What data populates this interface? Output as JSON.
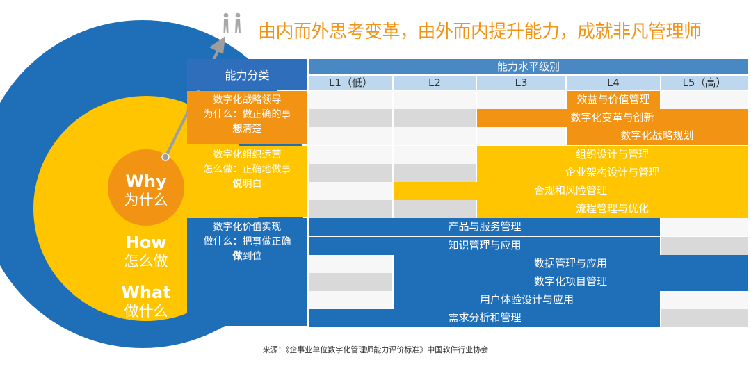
{
  "headline": "由内而外思考变革，由外而内提升能力，成就非凡管理师",
  "circles": {
    "why": {
      "en": "Why",
      "zh": "为什么"
    },
    "how": {
      "en": "How",
      "zh": "怎么做"
    },
    "what": {
      "en": "What",
      "zh": "做什么"
    }
  },
  "table": {
    "category_header": "能力分类",
    "level_header": "能力水平级别",
    "levels": [
      "L1（低）",
      "L2",
      "L3",
      "L4",
      "L5（高）"
    ],
    "categories": [
      {
        "line1": "数字化战略领导",
        "line2": "为什么：做正确的事",
        "bold": "想",
        "rest": "清楚",
        "color": "#F39313",
        "rows": [
          {
            "label": "效益与价值管理",
            "start": 4,
            "end": 4
          },
          {
            "label": "数字化变革与创新",
            "start": 3,
            "end": 5
          },
          {
            "label": "数字化战略规划",
            "start": 4,
            "end": 5
          }
        ]
      },
      {
        "line1": "数字化组织运营",
        "line2": "怎么做：正确地做事",
        "bold": "说",
        "rest": "明白",
        "color": "#FFC500",
        "rows": [
          {
            "label": "组织设计与管理",
            "start": 3,
            "end": 5
          },
          {
            "label": "企业架构设计与管理",
            "start": 3,
            "end": 5
          },
          {
            "label": "合规和风险管理",
            "start": 2,
            "end": 5
          },
          {
            "label": "流程管理与优化",
            "start": 3,
            "end": 5
          }
        ]
      },
      {
        "line1": "数字化价值实现",
        "line2": "做什么：把事做正确",
        "bold": "做",
        "rest": "到位",
        "color": "#1F6EB8",
        "rows": [
          {
            "label": "产品与服务管理",
            "start": 1,
            "end": 4
          },
          {
            "label": "知识管理与应用",
            "start": 1,
            "end": 4
          },
          {
            "label": "数据管理与应用",
            "start": 2,
            "end": 5
          },
          {
            "label": "数字化项目管理",
            "start": 2,
            "end": 5
          },
          {
            "label": "用户体验设计与应用",
            "start": 2,
            "end": 4
          },
          {
            "label": "需求分析和管理",
            "start": 1,
            "end": 4
          }
        ]
      }
    ]
  },
  "footer": "来源：《企事业单位数字化管理师能力评价标准》中国软件行业协会",
  "colors": {
    "orange": "#F39313",
    "yellow": "#FFC500",
    "blue": "#1F6EB8",
    "header_blue": "#4A88C3",
    "level_blue": "#BDD7EE",
    "grey_light": "#F7F7F7",
    "grey_dark": "#D9D9D9"
  }
}
